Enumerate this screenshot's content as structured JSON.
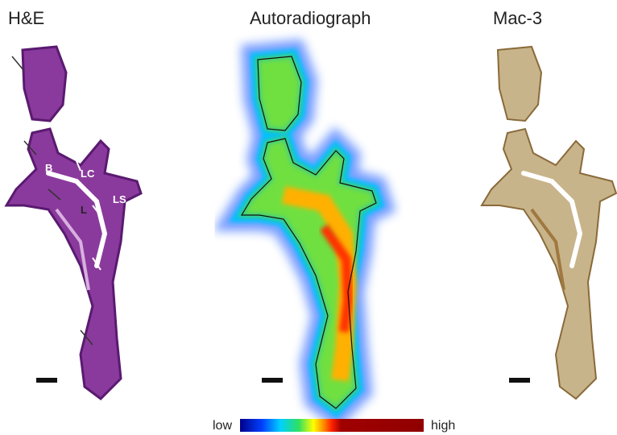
{
  "panels": [
    {
      "title": "H&E"
    },
    {
      "title": "Autoradiograph"
    },
    {
      "title": "Mac-3"
    }
  ],
  "annotations": [
    "B",
    "LC",
    "L",
    "LS"
  ],
  "colorbar": {
    "low": "low",
    "high": "high"
  }
}
